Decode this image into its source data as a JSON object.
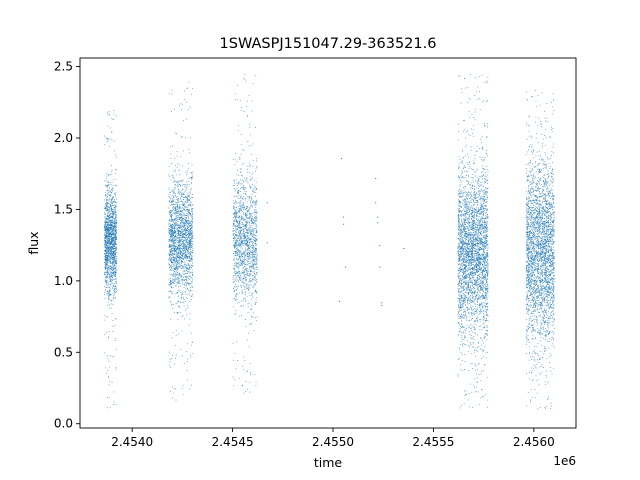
{
  "chart_data": {
    "type": "scatter",
    "title": "1SWASPJ151047.29-363521.6",
    "xlabel": "time",
    "ylabel": "flux",
    "x_offset_label": "1e6",
    "x_ticks": [
      2.454,
      2.4545,
      2.455,
      2.4555,
      2.456
    ],
    "x_tick_labels": [
      "2.4540",
      "2.4545",
      "2.4550",
      "2.4555",
      "2.4560"
    ],
    "y_ticks": [
      0.0,
      0.5,
      1.0,
      1.5,
      2.0,
      2.5
    ],
    "y_tick_labels": [
      "0.0",
      "0.5",
      "1.0",
      "1.5",
      "2.0",
      "2.5"
    ],
    "xlim": [
      2.45374,
      2.45621
    ],
    "ylim": [
      -0.03,
      2.56
    ],
    "grid": false,
    "marker_color": "#1f77b4",
    "clusters": [
      {
        "x_range": [
          2.45386,
          2.45392
        ],
        "count": 1600,
        "core": [
          0.95,
          1.6
        ],
        "spread": [
          0.1,
          2.2
        ]
      },
      {
        "x_range": [
          2.45418,
          2.4543
        ],
        "count": 2000,
        "core": [
          0.95,
          1.65
        ],
        "spread": [
          0.15,
          2.4
        ]
      },
      {
        "x_range": [
          2.4545,
          2.45462
        ],
        "count": 1500,
        "core": [
          0.9,
          1.7
        ],
        "spread": [
          0.2,
          2.45
        ]
      },
      {
        "x_range": [
          2.45562,
          2.45577
        ],
        "count": 3200,
        "core": [
          0.7,
          1.7
        ],
        "spread": [
          0.1,
          2.45
        ]
      },
      {
        "x_range": [
          2.45596,
          2.4561
        ],
        "count": 3000,
        "core": [
          0.65,
          1.75
        ],
        "spread": [
          0.1,
          2.35
        ]
      }
    ],
    "sparse_points": [
      {
        "x": 2.45467,
        "y": 1.55
      },
      {
        "x": 2.45467,
        "y": 1.27
      },
      {
        "x": 2.45504,
        "y": 1.86
      },
      {
        "x": 2.45505,
        "y": 1.45
      },
      {
        "x": 2.45505,
        "y": 1.4
      },
      {
        "x": 2.45503,
        "y": 0.86
      },
      {
        "x": 2.45506,
        "y": 1.1
      },
      {
        "x": 2.45521,
        "y": 1.72
      },
      {
        "x": 2.45521,
        "y": 1.55
      },
      {
        "x": 2.45522,
        "y": 1.45
      },
      {
        "x": 2.45522,
        "y": 1.41
      },
      {
        "x": 2.45523,
        "y": 1.25
      },
      {
        "x": 2.45523,
        "y": 1.1
      },
      {
        "x": 2.45524,
        "y": 0.85
      },
      {
        "x": 2.45524,
        "y": 0.83
      },
      {
        "x": 2.45535,
        "y": 1.23
      }
    ]
  }
}
